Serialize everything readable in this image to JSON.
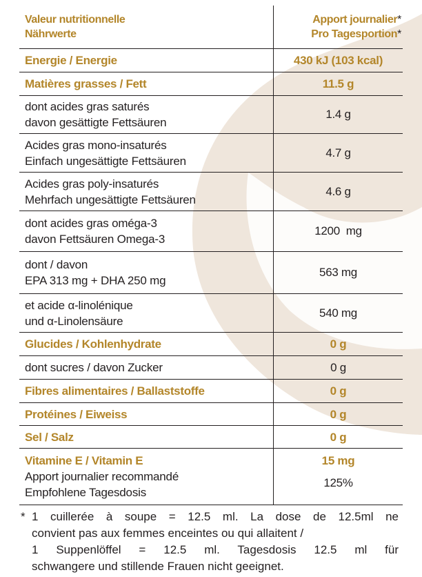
{
  "header": {
    "left_line1": "Valeur nutritionnelle",
    "left_line2": "Nährwerte",
    "right_line1": "Apport journalier",
    "right_line2": "Pro Tagesportion",
    "asterisk": "*"
  },
  "rows": [
    {
      "fr": "Energie / Energie",
      "de": "",
      "value": "430 kJ (103 kcal)",
      "highlight": true
    },
    {
      "fr": "Matières grasses / Fett",
      "de": "",
      "value": "11.5 g",
      "highlight": true
    },
    {
      "fr": "dont acides gras saturés",
      "de": "davon gesättigte Fettsäuren",
      "value": "1.4 g",
      "highlight": false
    },
    {
      "fr": "Acides gras mono-insaturés",
      "de": "Einfach ungesättigte Fettsäuren",
      "value": "4.7 g",
      "highlight": false
    },
    {
      "fr": "Acides gras poly-insaturés",
      "de": "Mehrfach ungesättigte Fettsäuren",
      "value": "4.6 g",
      "highlight": false
    },
    {
      "fr": "dont acides gras oméga-3",
      "de": "davon Fettsäuren Omega-3",
      "value": "1200  mg",
      "highlight": false
    },
    {
      "fr": "dont / davon",
      "de": "EPA 313 mg + DHA 250 mg",
      "value": "563 mg",
      "highlight": false
    },
    {
      "fr": "et acide α-linolénique",
      "de": "und α-Linolensäure",
      "value": "540 mg",
      "highlight": false
    },
    {
      "fr": "Glucides / Kohlenhydrate",
      "de": "",
      "value": "0 g",
      "highlight": true
    },
    {
      "fr": "dont sucres / davon Zucker",
      "de": "",
      "value": "0 g",
      "highlight": false
    },
    {
      "fr": "Fibres alimentaires / Ballaststoffe",
      "de": "",
      "value": "0 g",
      "highlight": true
    },
    {
      "fr": "Protéines / Eiweiss",
      "de": "",
      "value": "0 g",
      "highlight": true
    },
    {
      "fr": "Sel / Salz",
      "de": "",
      "value": "0 g",
      "highlight": true
    },
    {
      "fr": "Vitamine E / Vitamin E",
      "de": "",
      "value": "15 mg",
      "highlight": true
    }
  ],
  "vitamin_note": {
    "line1": "Apport journalier recommandé",
    "line2": "Empfohlene Tagesdosis",
    "value": "125%"
  },
  "footnote": {
    "asterisk": "*",
    "line1": "1 cuillerée à soupe = 12.5 ml. La dose de 12.5ml ne",
    "line2": "convient pas aux femmes enceintes ou qui allaitent /",
    "line3": "1 Suppenlöffel = 12.5 ml. Tagesdosis 12.5 ml für",
    "line4": "schwangere und stillende Frauen nicht geeignet."
  },
  "colors": {
    "accent": "#b3862a",
    "text": "#231f20",
    "drop": "#efe6dc"
  }
}
